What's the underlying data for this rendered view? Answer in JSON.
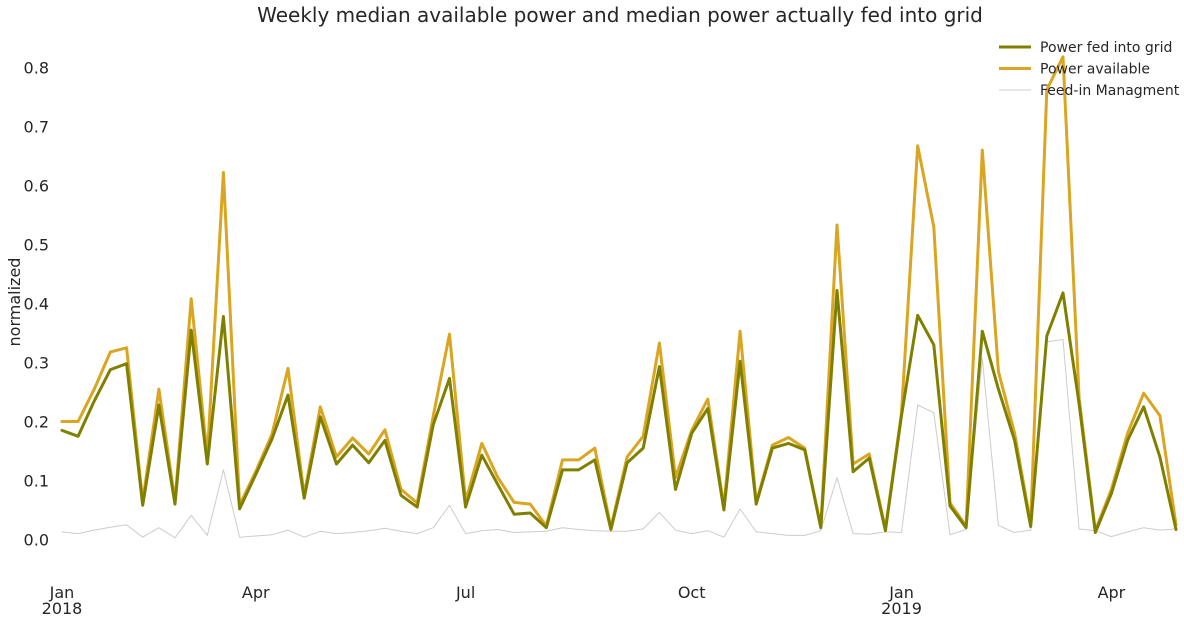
{
  "chart_data": {
    "type": "line",
    "title": "Weekly median available power and median power actually fed into grid",
    "xlabel": "",
    "ylabel": "normalized",
    "ylim": [
      -0.055,
      0.855
    ],
    "xlim": [
      0,
      69
    ],
    "grid": false,
    "legend_position": "top-right",
    "y_ticks": [
      "0.0",
      "0.1",
      "0.2",
      "0.3",
      "0.4",
      "0.5",
      "0.6",
      "0.7",
      "0.8"
    ],
    "y_tick_values": [
      0,
      0.1,
      0.2,
      0.3,
      0.4,
      0.5,
      0.6,
      0.7,
      0.8
    ],
    "x_ticks": [
      {
        "week": 0,
        "label": "Jan",
        "sublabel": "2018"
      },
      {
        "week": 12,
        "label": "Apr",
        "sublabel": ""
      },
      {
        "week": 25,
        "label": "Jul",
        "sublabel": ""
      },
      {
        "week": 39,
        "label": "Oct",
        "sublabel": ""
      },
      {
        "week": 52,
        "label": "Jan",
        "sublabel": "2019"
      },
      {
        "week": 65,
        "label": "Apr",
        "sublabel": ""
      }
    ],
    "series": [
      {
        "name": "Feed-in Managment",
        "color": "#cccccc",
        "width": 1,
        "values": [
          0.013,
          0.01,
          0.016,
          0.021,
          0.025,
          0.004,
          0.02,
          0.003,
          0.041,
          0.007,
          0.118,
          0.004,
          0.006,
          0.008,
          0.016,
          0.004,
          0.014,
          0.01,
          0.012,
          0.015,
          0.019,
          0.014,
          0.01,
          0.02,
          0.058,
          0.01,
          0.015,
          0.017,
          0.012,
          0.013,
          0.014,
          0.02,
          0.017,
          0.015,
          0.014,
          0.014,
          0.018,
          0.046,
          0.016,
          0.01,
          0.015,
          0.004,
          0.052,
          0.013,
          0.01,
          0.007,
          0.007,
          0.015,
          0.105,
          0.01,
          0.009,
          0.013,
          0.012,
          0.228,
          0.215,
          0.008,
          0.017,
          0.307,
          0.024,
          0.012,
          0.016,
          0.335,
          0.339,
          0.018,
          0.015,
          0.005,
          0.013,
          0.02,
          0.016,
          0.018
        ]
      },
      {
        "name": "Power available",
        "color": "#daa520",
        "width": 3,
        "values": [
          0.2,
          0.2,
          0.255,
          0.318,
          0.325,
          0.065,
          0.255,
          0.065,
          0.408,
          0.14,
          0.622,
          0.058,
          0.115,
          0.178,
          0.29,
          0.075,
          0.225,
          0.14,
          0.172,
          0.145,
          0.186,
          0.085,
          0.062,
          0.21,
          0.348,
          0.065,
          0.163,
          0.105,
          0.063,
          0.06,
          0.023,
          0.135,
          0.135,
          0.155,
          0.02,
          0.14,
          0.175,
          0.333,
          0.105,
          0.185,
          0.238,
          0.055,
          0.353,
          0.063,
          0.16,
          0.173,
          0.155,
          0.022,
          0.533,
          0.128,
          0.145,
          0.018,
          0.215,
          0.667,
          0.53,
          0.062,
          0.023,
          0.66,
          0.285,
          0.18,
          0.027,
          0.762,
          0.818,
          0.24,
          0.015,
          0.085,
          0.18,
          0.248,
          0.21,
          0.025
        ]
      },
      {
        "name": "Power fed into grid",
        "color": "#808000",
        "width": 3,
        "values": [
          0.185,
          0.175,
          0.235,
          0.288,
          0.298,
          0.058,
          0.228,
          0.06,
          0.355,
          0.128,
          0.378,
          0.052,
          0.11,
          0.17,
          0.245,
          0.07,
          0.208,
          0.128,
          0.16,
          0.13,
          0.168,
          0.075,
          0.055,
          0.195,
          0.273,
          0.055,
          0.143,
          0.093,
          0.043,
          0.045,
          0.02,
          0.118,
          0.118,
          0.135,
          0.017,
          0.13,
          0.155,
          0.293,
          0.085,
          0.18,
          0.222,
          0.05,
          0.302,
          0.06,
          0.155,
          0.163,
          0.152,
          0.02,
          0.422,
          0.115,
          0.138,
          0.015,
          0.21,
          0.38,
          0.33,
          0.057,
          0.02,
          0.353,
          0.255,
          0.168,
          0.022,
          0.345,
          0.418,
          0.23,
          0.012,
          0.078,
          0.168,
          0.225,
          0.14,
          0.017
        ]
      }
    ]
  }
}
